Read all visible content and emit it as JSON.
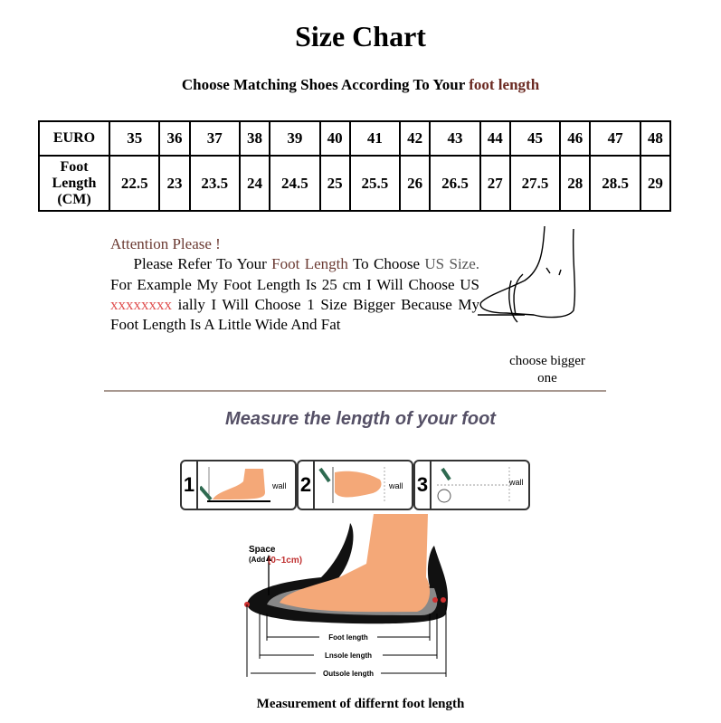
{
  "title": "Size Chart",
  "subtitle": {
    "prefix": "Choose Matching Shoes According To Your",
    "highlight": "foot length"
  },
  "table": {
    "row_headers": [
      "EURO",
      "Foot Length (CM)"
    ],
    "euro": [
      "35",
      "36",
      "37",
      "38",
      "39",
      "40",
      "41",
      "42",
      "43",
      "44",
      "45",
      "46",
      "47",
      "48"
    ],
    "foot_length_cm": [
      "22.5",
      "23",
      "23.5",
      "24",
      "24.5",
      "25",
      "25.5",
      "26",
      "26.5",
      "27",
      "27.5",
      "28",
      "28.5",
      "29"
    ]
  },
  "attention": {
    "heading": "Attention Please !",
    "p1": "Please Refer To Your",
    "p2": "Foot Length",
    "p3": "To Choose",
    "p4": "US Size.",
    "p5": "For Example My Foot Length Is 25 cm I Will Choose US",
    "p6": "xxxxxxxx",
    "p7": "ially I Will Choose 1 Size Bigger Because My Foot Length Is A Little Wide And Fat"
  },
  "foot_sketch_caption": "choose bigger one",
  "measure_heading": "Measure the length of your foot",
  "steps": [
    {
      "num": "1",
      "label": "wall"
    },
    {
      "num": "2",
      "label": "wall"
    },
    {
      "num": "3",
      "label": "wall"
    }
  ],
  "diagram": {
    "space_label": "Space",
    "add_prefix": "(Add",
    "add_value": "(0~1cm)",
    "lengths": [
      "Foot length",
      "Lnsole length",
      "Outsole length"
    ]
  },
  "caption": "Measurement of differnt foot length",
  "colors": {
    "highlight": "#6b2a22",
    "skin": "#f4a878",
    "red_text": "#e05050"
  }
}
